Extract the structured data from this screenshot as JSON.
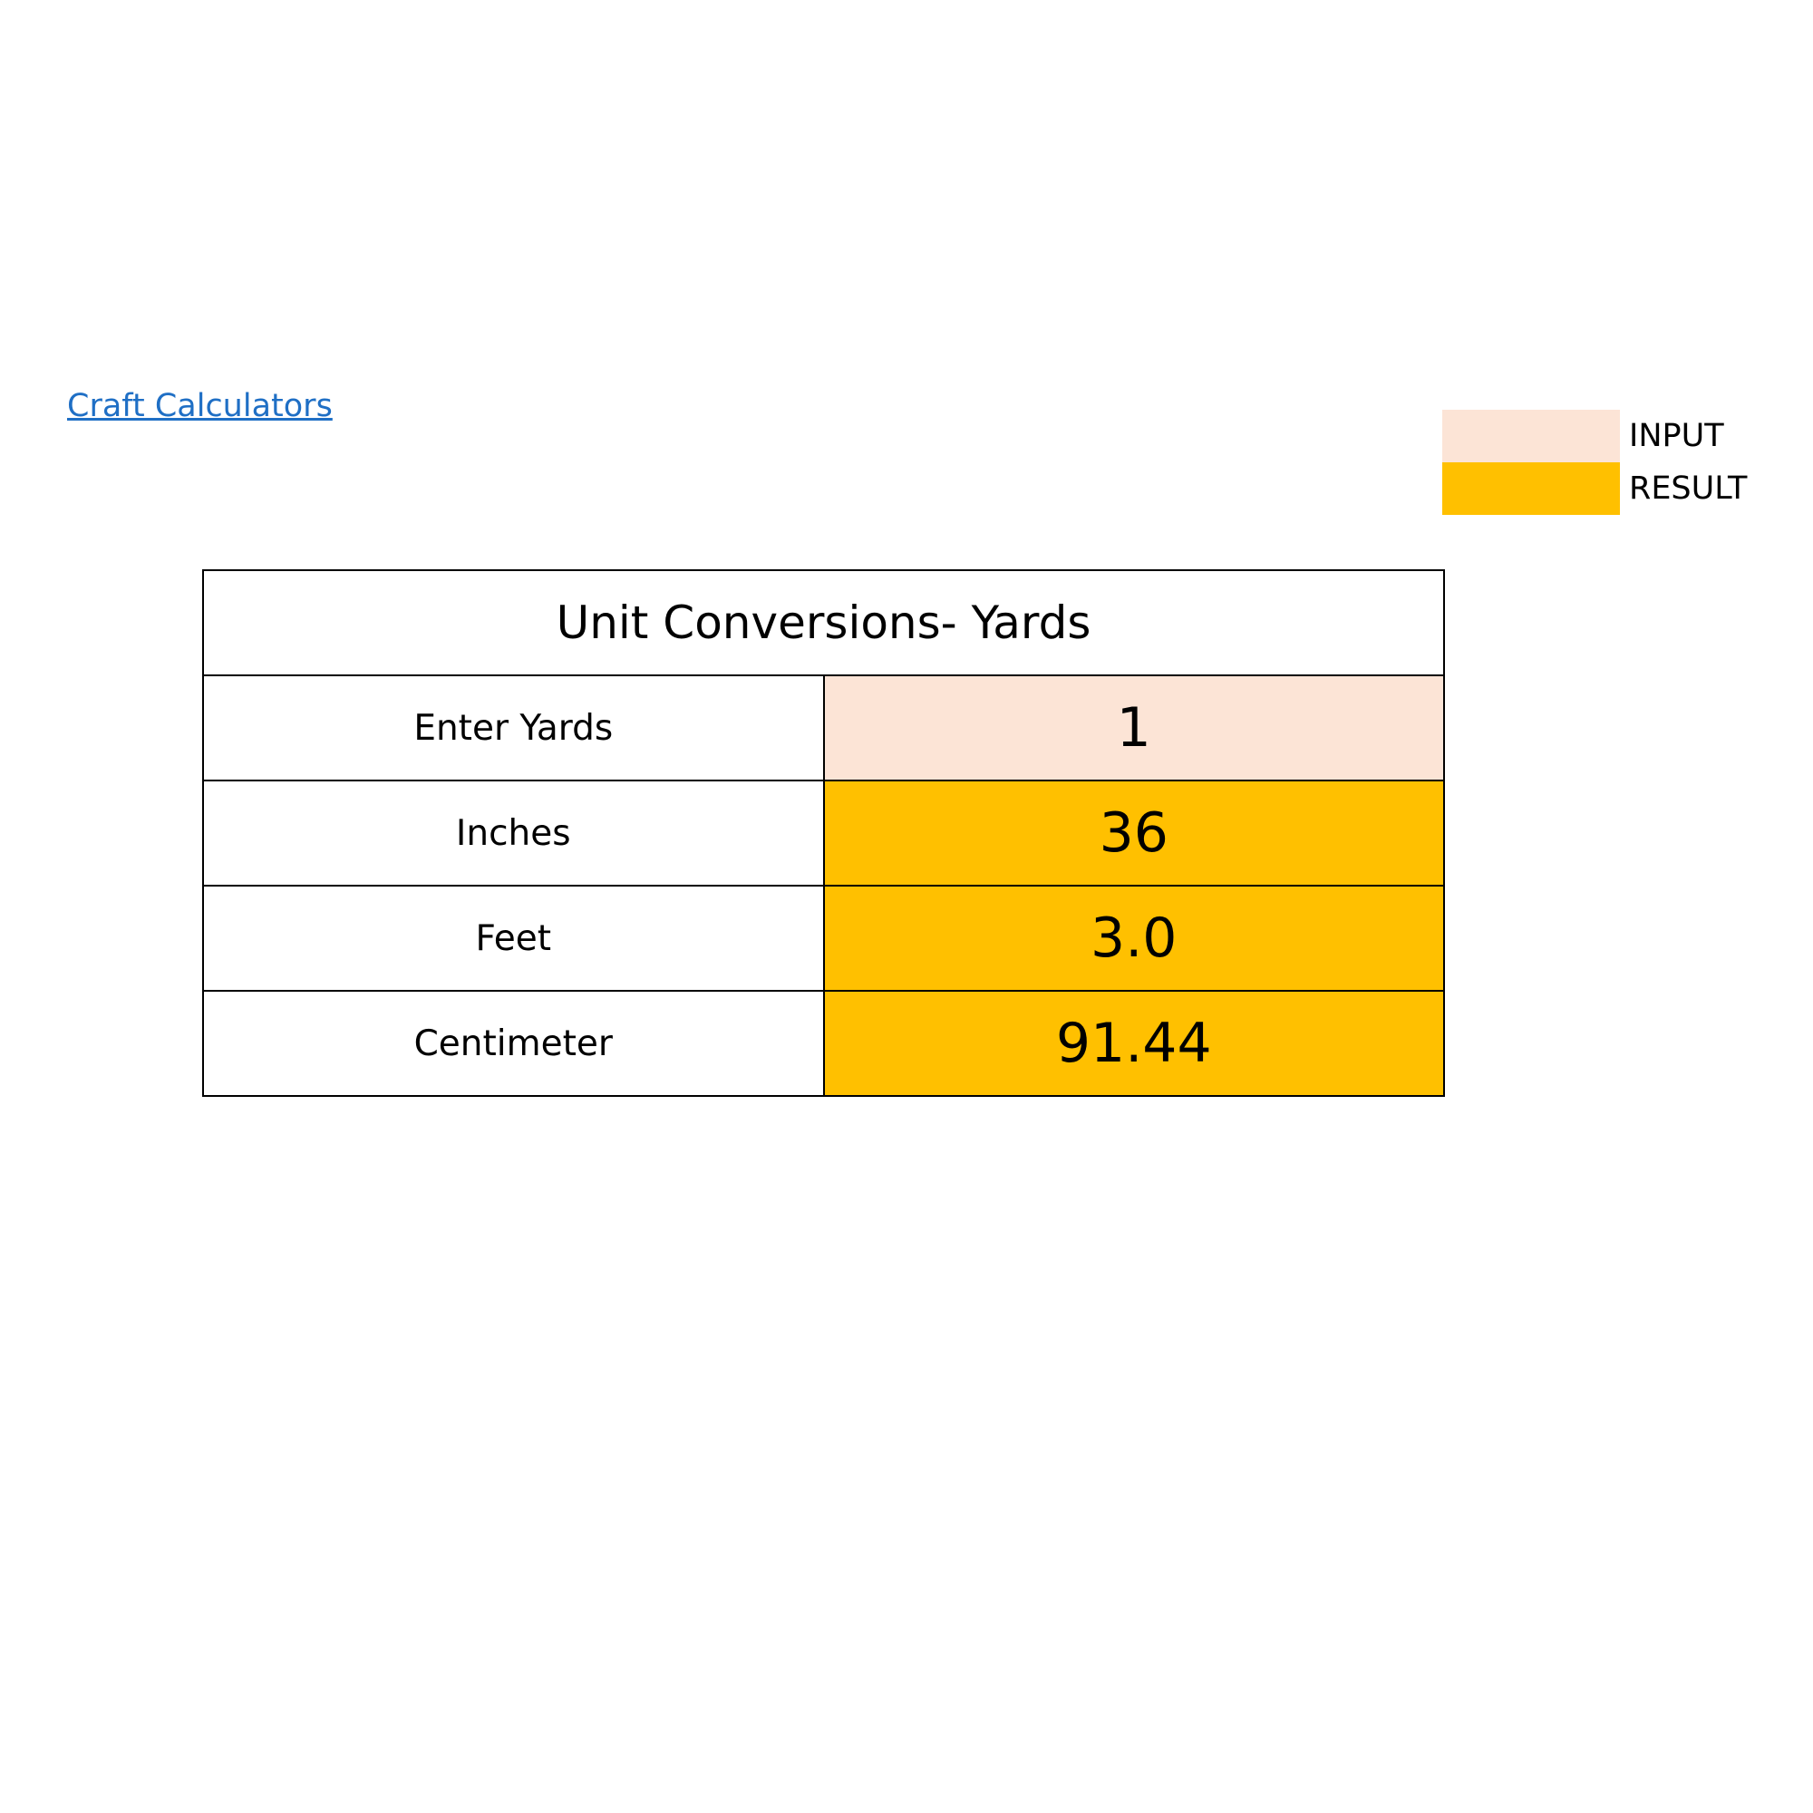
{
  "link": "Craft Calculators",
  "legend": [
    {
      "label": "INPUT"
    },
    {
      "label": "RESULT"
    }
  ],
  "table": {
    "title": "Unit Conversions- Yards",
    "rows": [
      [
        "Enter Yards",
        "1"
      ],
      [
        "Inches",
        "36"
      ],
      [
        "Feet",
        "3.0"
      ],
      [
        "Centimeter",
        "91.44"
      ]
    ]
  }
}
